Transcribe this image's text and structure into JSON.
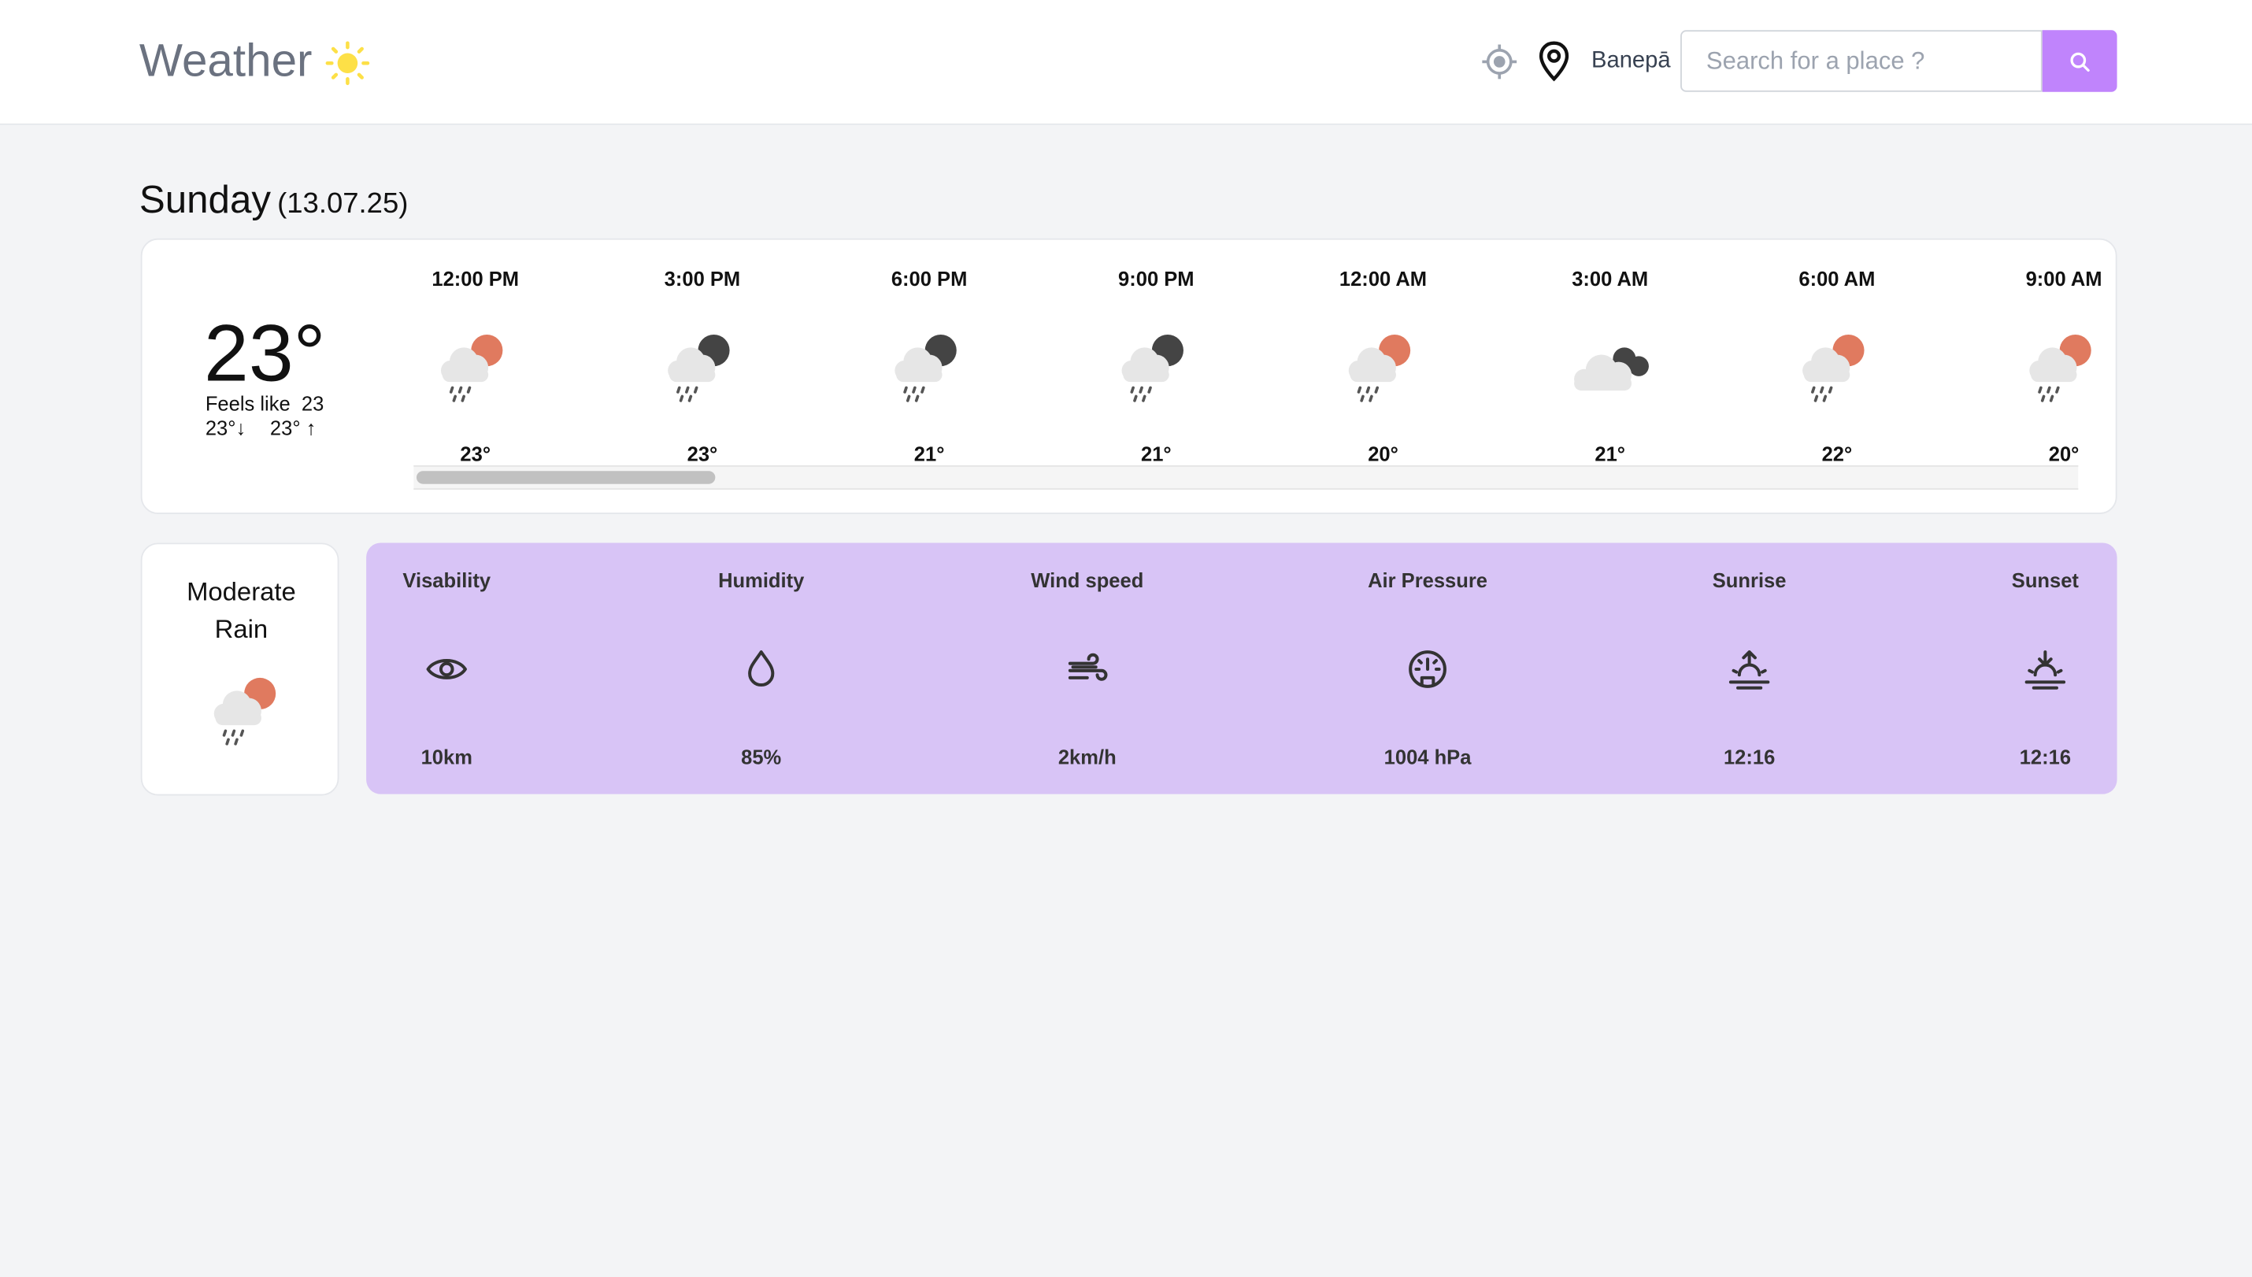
{
  "header": {
    "title": "Weather",
    "location": "Banepā",
    "search_placeholder": "Search for a place ?"
  },
  "day": {
    "name": "Sunday",
    "date": "(13.07.25)"
  },
  "current": {
    "temp": "23°",
    "feels_like": "Feels like  23",
    "min": "23°↓",
    "max": "23° ↑"
  },
  "hourly": [
    {
      "time": "12:00 PM",
      "temp": "23°"
    },
    {
      "time": "3:00 PM",
      "temp": "23°"
    },
    {
      "time": "6:00 PM",
      "temp": "21°"
    },
    {
      "time": "9:00 PM",
      "temp": "21°"
    },
    {
      "time": "12:00 AM",
      "temp": "20°"
    },
    {
      "time": "3:00 AM",
      "temp": "21°"
    },
    {
      "time": "6:00 AM",
      "temp": "22°"
    },
    {
      "time": "9:00 AM",
      "temp": "20°"
    }
  ],
  "condition": "Moderate Rain",
  "highlights": [
    {
      "label": "Visability",
      "value": "10km"
    },
    {
      "label": "Humidity",
      "value": "85%"
    },
    {
      "label": "Wind speed",
      "value": "2km/h"
    },
    {
      "label": "Air Pressure",
      "value": "1004 hPa"
    },
    {
      "label": "Sunrise",
      "value": "12:16"
    },
    {
      "label": "Sunset",
      "value": "12:16"
    }
  ]
}
